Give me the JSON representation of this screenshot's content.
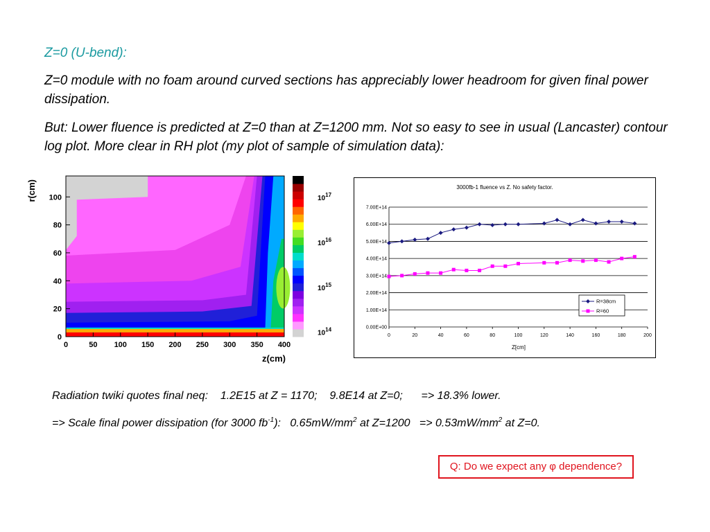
{
  "heading": "Z=0 (U-bend):",
  "para1": "Z=0 module with no foam around curved sections has appreciably lower headroom for given final power dissipation.",
  "para2": "But: Lower fluence is predicted at Z=0 than at Z=1200 mm. Not so easy to see in usual (Lancaster) contour log plot. More clear in RH plot (my plot of sample of simulation data):",
  "note1": {
    "prefix": "Radiation twiki quotes final neq:",
    "val1": "1.2E15 at Z = 1170;",
    "val2": "9.8E14 at Z=0;",
    "result": "=> 18.3% lower."
  },
  "note2": {
    "a": "=> Scale final power dissipation (for 3000 fb",
    "sup1": "-1",
    "b": "):",
    "c": "0.65mW/mm",
    "sup2": "2",
    "d": " at Z=1200",
    "e": "=> 0.53mW/mm",
    "sup3": "2",
    "f": " at Z=0."
  },
  "question": {
    "pre": "Q: Do we expect any ",
    "symbol": "φ",
    "post": " dependence?"
  },
  "colors": {
    "heading": "#1b9aa0",
    "question_border": "#e0141e",
    "series_r38": "#1a1a80",
    "series_r60": "#ff00ff"
  },
  "chart_data": [
    {
      "type": "heatmap",
      "title": "",
      "xlabel": "z(cm)",
      "ylabel": "r(cm)",
      "xlim": [
        0,
        400
      ],
      "ylim": [
        0,
        115
      ],
      "x_ticks": [
        "0",
        "50",
        "100",
        "150",
        "200",
        "250",
        "300",
        "350",
        "400"
      ],
      "y_ticks": [
        "0",
        "20",
        "40",
        "60",
        "80",
        "100"
      ],
      "colorbar": {
        "scale": "log",
        "labels": [
          {
            "base": "10",
            "exp": "17",
            "value": 1e+17
          },
          {
            "base": "10",
            "exp": "16",
            "value": 1e+16
          },
          {
            "base": "10",
            "exp": "15",
            "value": 1000000000000000.0
          },
          {
            "base": "10",
            "exp": "14",
            "value": 100000000000000.0
          }
        ],
        "colors_bottom_to_top": [
          "#d3d3d3",
          "#ff99ff",
          "#ff33ff",
          "#cc33ff",
          "#a020f0",
          "#7d00e0",
          "#2020d8",
          "#0000ff",
          "#0055ff",
          "#00aaff",
          "#00ddcc",
          "#00cc66",
          "#44dd22",
          "#99ee33",
          "#ffff00",
          "#ffaa00",
          "#ff6600",
          "#ff0000",
          "#cc0000",
          "#990000",
          "#000000"
        ]
      }
    },
    {
      "type": "line",
      "title": "3000fb-1 fluence vs Z.  No safety factor.",
      "xlabel": "Z[cm]",
      "ylabel": "",
      "xlim": [
        0,
        200
      ],
      "ylim": [
        0,
        700000000000000.0
      ],
      "x_ticks": [
        "0",
        "20",
        "40",
        "60",
        "80",
        "100",
        "120",
        "140",
        "160",
        "180",
        "200"
      ],
      "y_ticks": [
        "0.00E+00",
        "1.00E+14",
        "2.00E+14",
        "3.00E+14",
        "4.00E+14",
        "5.00E+14",
        "6.00E+14",
        "7.00E+14"
      ],
      "grid": true,
      "legend": "bottom-right",
      "series": [
        {
          "name": "R=38cm",
          "marker": "diamond",
          "x": [
            0,
            10,
            20,
            30,
            40,
            50,
            60,
            70,
            80,
            90,
            100,
            120,
            130,
            140,
            150,
            160,
            170,
            180,
            190
          ],
          "y": [
            490000000000000.0,
            500000000000000.0,
            510000000000000.0,
            515000000000000.0,
            550000000000000.0,
            570000000000000.0,
            580000000000000.0,
            600000000000000.0,
            595000000000000.0,
            600000000000000.0,
            600000000000000.0,
            605000000000000.0,
            625000000000000.0,
            600000000000000.0,
            625000000000000.0,
            605000000000000.0,
            615000000000000.0,
            615000000000000.0,
            605000000000000.0
          ]
        },
        {
          "name": "R=60",
          "marker": "square",
          "x": [
            0,
            10,
            20,
            30,
            40,
            50,
            60,
            70,
            80,
            90,
            100,
            120,
            130,
            140,
            150,
            160,
            170,
            180,
            190
          ],
          "y": [
            295000000000000.0,
            300000000000000.0,
            310000000000000.0,
            315000000000000.0,
            315000000000000.0,
            335000000000000.0,
            330000000000000.0,
            330000000000000.0,
            355000000000000.0,
            355000000000000.0,
            370000000000000.0,
            375000000000000.0,
            375000000000000.0,
            390000000000000.0,
            385000000000000.0,
            390000000000000.0,
            380000000000000.0,
            400000000000000.0,
            410000000000000.0
          ]
        }
      ]
    }
  ]
}
